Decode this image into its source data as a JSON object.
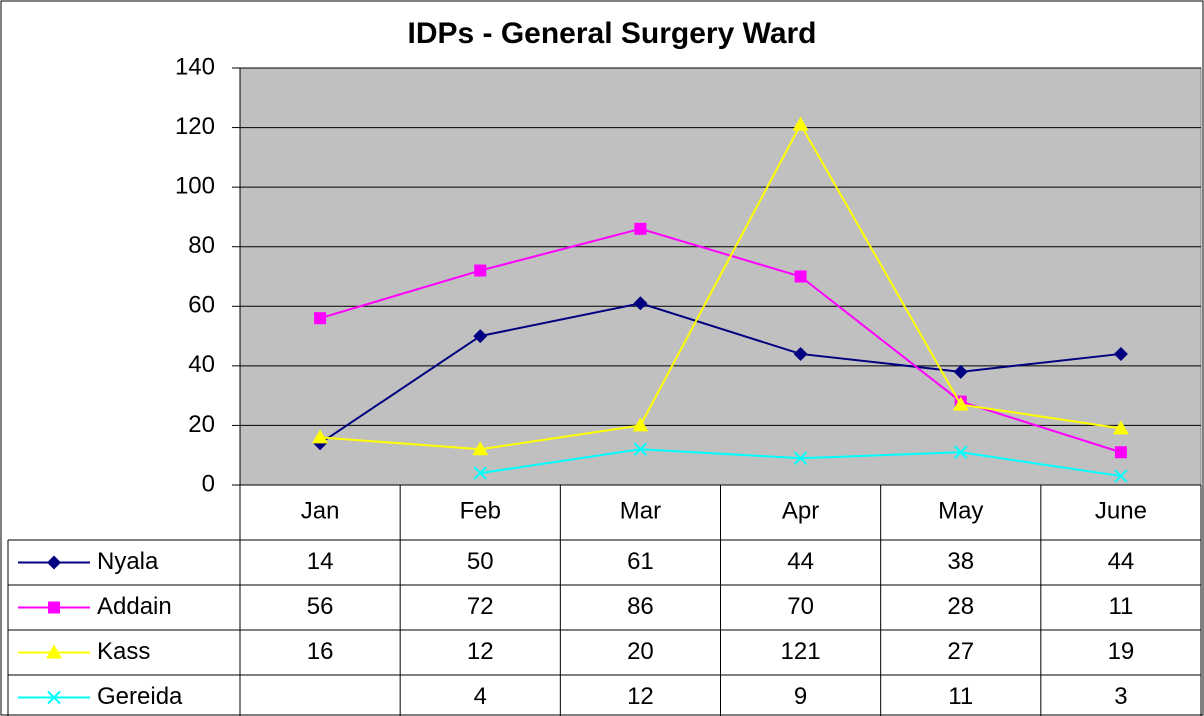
{
  "chart_data": {
    "type": "line",
    "title": "IDPs - General Surgery Ward",
    "categories": [
      "Jan",
      "Feb",
      "Mar",
      "Apr",
      "May",
      "June"
    ],
    "series": [
      {
        "name": "Nyala",
        "color": "#000080",
        "marker": "diamond",
        "values": [
          14,
          50,
          61,
          44,
          38,
          44
        ]
      },
      {
        "name": "Addain",
        "color": "#ff00ff",
        "marker": "square",
        "values": [
          56,
          72,
          86,
          70,
          28,
          11
        ]
      },
      {
        "name": "Kass",
        "color": "#ffff00",
        "marker": "triangle",
        "values": [
          16,
          12,
          20,
          121,
          27,
          19
        ]
      },
      {
        "name": "Gereida",
        "color": "#00ffff",
        "marker": "x",
        "values": [
          null,
          4,
          12,
          9,
          11,
          3
        ]
      }
    ],
    "ylim": [
      0,
      140
    ],
    "yticks": [
      0,
      20,
      40,
      60,
      80,
      100,
      120,
      140
    ],
    "grid": true,
    "data_table": true
  }
}
